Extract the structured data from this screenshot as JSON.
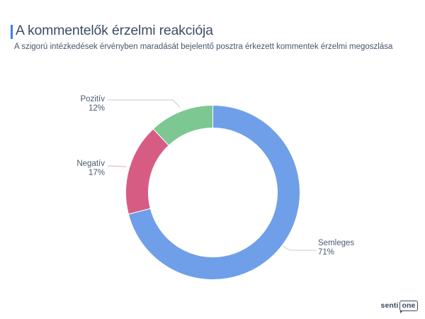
{
  "header": {
    "title": "A kommentelők érzelmi reakciója",
    "subtitle": "A szigorú intézkedések érvényben maradását bejelentő posztra érkezett kommentek érzelmi megoszlása",
    "accent_color": "#3E7EE9"
  },
  "chart_data": {
    "type": "pie",
    "subtype": "donut",
    "direction": "clockwise",
    "start_angle_deg": 0,
    "inner_radius_ratio": 0.74,
    "legend_position": "none",
    "labels_style": "outside with connector lines",
    "slices": [
      {
        "label": "Semleges",
        "value": 71,
        "percent_text": "71%",
        "color": "#6F9FE8",
        "connector_color": "#C9C9C9"
      },
      {
        "label": "Negatív",
        "value": 17,
        "percent_text": "17%",
        "color": "#D75C84",
        "connector_color": "#EBA6BB"
      },
      {
        "label": "Pozitív",
        "value": 12,
        "percent_text": "12%",
        "color": "#7CC792",
        "connector_color": "#C9C9C9"
      }
    ]
  },
  "logo": {
    "prefix": "senti",
    "suffix": "one"
  }
}
